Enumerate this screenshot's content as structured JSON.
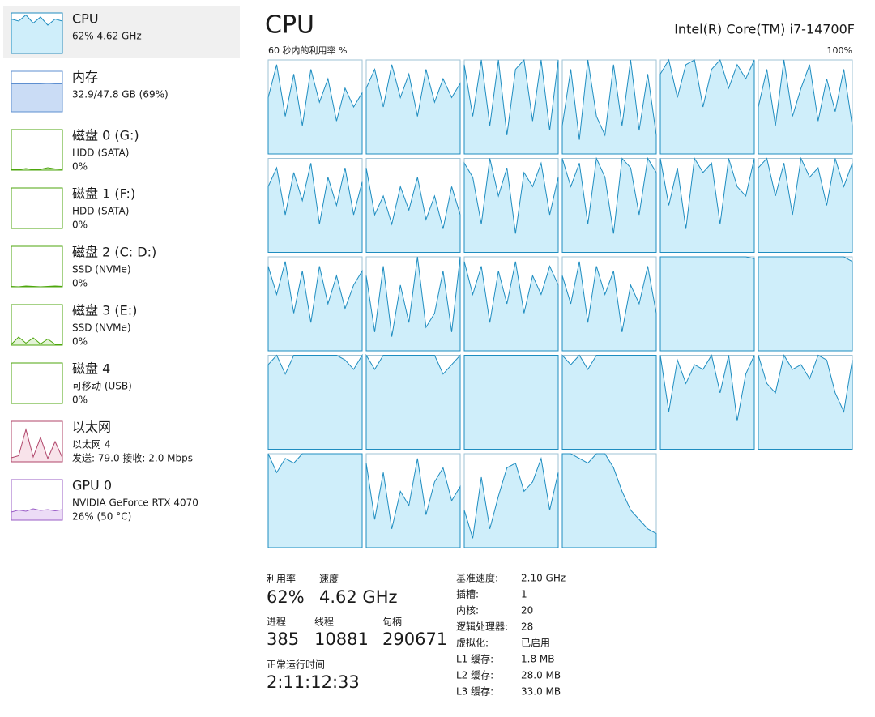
{
  "sidebar": [
    {
      "name": "CPU",
      "lines": [
        "62% 4.62 GHz"
      ],
      "graph": [
        85,
        80,
        95,
        75,
        90,
        70,
        85,
        80
      ]
    },
    {
      "name": "内存",
      "lines": [
        "32.9/47.8 GB (69%)"
      ],
      "graph": [
        69,
        69,
        69,
        69,
        69,
        70,
        69,
        69
      ]
    },
    {
      "name": "磁盘 0 (G:)",
      "lines": [
        "HDD (SATA)",
        "0%"
      ],
      "graph": [
        2,
        1,
        4,
        1,
        2,
        6,
        3,
        2
      ]
    },
    {
      "name": "磁盘 1 (F:)",
      "lines": [
        "HDD (SATA)",
        "0%"
      ],
      "graph": [
        0,
        0,
        0,
        0,
        0,
        0,
        0,
        0
      ]
    },
    {
      "name": "磁盘 2 (C: D:)",
      "lines": [
        "SSD (NVMe)",
        "0%"
      ],
      "graph": [
        1,
        0,
        2,
        1,
        0,
        1,
        2,
        1
      ]
    },
    {
      "name": "磁盘 3 (E:)",
      "lines": [
        "SSD (NVMe)",
        "0%"
      ],
      "graph": [
        2,
        20,
        5,
        18,
        3,
        15,
        2,
        1
      ]
    },
    {
      "name": "磁盘 4",
      "lines": [
        "可移动 (USB)",
        "0%"
      ],
      "graph": [
        0,
        0,
        0,
        0,
        0,
        0,
        0,
        0
      ]
    },
    {
      "name": "以太网",
      "lines": [
        "以太网 4",
        "发送: 79.0 接收: 2.0 Mbps"
      ],
      "graph": [
        10,
        15,
        80,
        12,
        60,
        8,
        50,
        10
      ]
    },
    {
      "name": "GPU 0",
      "lines": [
        "NVIDIA GeForce RTX 4070",
        "26% (50 °C)"
      ],
      "graph": [
        20,
        25,
        22,
        28,
        24,
        26,
        23,
        26
      ]
    }
  ],
  "header": {
    "title": "CPU",
    "model": "Intel(R) Core(TM) i7-14700F",
    "graph_label": "60 秒内的利用率 %",
    "graph_max": "100%"
  },
  "core_ylim": [
    0,
    100
  ],
  "cores": [
    [
      60,
      95,
      40,
      85,
      30,
      90,
      55,
      80,
      35,
      70,
      50,
      65
    ],
    [
      70,
      90,
      50,
      95,
      60,
      85,
      40,
      90,
      55,
      80,
      60,
      75
    ],
    [
      95,
      40,
      100,
      30,
      100,
      20,
      90,
      100,
      35,
      100,
      25,
      100
    ],
    [
      30,
      90,
      15,
      100,
      40,
      20,
      95,
      30,
      100,
      25,
      85,
      20
    ],
    [
      85,
      100,
      60,
      95,
      100,
      50,
      90,
      100,
      70,
      95,
      80,
      100
    ],
    [
      50,
      90,
      30,
      100,
      40,
      70,
      95,
      35,
      80,
      45,
      90,
      30
    ],
    [
      70,
      90,
      40,
      85,
      55,
      95,
      30,
      80,
      50,
      90,
      40,
      75
    ],
    [
      90,
      40,
      60,
      30,
      70,
      45,
      80,
      35,
      60,
      25,
      70,
      40
    ],
    [
      95,
      80,
      30,
      100,
      60,
      90,
      20,
      85,
      70,
      95,
      40,
      80
    ],
    [
      100,
      70,
      95,
      30,
      100,
      80,
      20,
      100,
      90,
      40,
      100,
      85
    ],
    [
      100,
      50,
      90,
      25,
      100,
      85,
      95,
      30,
      100,
      70,
      60,
      100
    ],
    [
      90,
      100,
      60,
      95,
      40,
      100,
      80,
      90,
      50,
      100,
      70,
      95
    ],
    [
      90,
      60,
      95,
      40,
      85,
      30,
      90,
      50,
      80,
      45,
      70,
      85
    ],
    [
      80,
      20,
      90,
      15,
      70,
      30,
      100,
      25,
      40,
      85,
      20,
      100
    ],
    [
      95,
      60,
      90,
      30,
      85,
      50,
      95,
      40,
      80,
      60,
      90,
      70
    ],
    [
      80,
      50,
      95,
      30,
      90,
      60,
      85,
      20,
      70,
      50,
      90,
      40
    ],
    [
      100,
      100,
      100,
      100,
      100,
      100,
      100,
      100,
      100,
      100,
      100,
      98
    ],
    [
      100,
      100,
      100,
      100,
      100,
      100,
      100,
      100,
      100,
      100,
      100,
      95
    ],
    [
      90,
      100,
      80,
      100,
      100,
      100,
      100,
      100,
      100,
      95,
      85,
      100
    ],
    [
      100,
      85,
      100,
      100,
      100,
      100,
      100,
      100,
      100,
      80,
      90,
      100
    ],
    [
      100,
      100,
      100,
      100,
      100,
      100,
      100,
      100,
      100,
      100,
      100,
      100
    ],
    [
      100,
      90,
      100,
      85,
      100,
      100,
      100,
      100,
      100,
      100,
      100,
      100
    ],
    [
      100,
      40,
      95,
      70,
      90,
      85,
      100,
      60,
      100,
      30,
      80,
      100
    ],
    [
      100,
      70,
      60,
      100,
      85,
      90,
      75,
      100,
      95,
      60,
      40,
      95
    ],
    [
      100,
      80,
      95,
      90,
      100,
      100,
      100,
      100,
      100,
      100,
      100,
      100
    ],
    [
      90,
      30,
      80,
      20,
      60,
      45,
      95,
      35,
      70,
      85,
      50,
      65
    ],
    [
      40,
      10,
      75,
      20,
      55,
      85,
      90,
      60,
      70,
      95,
      40,
      80
    ],
    [
      100,
      100,
      95,
      90,
      100,
      100,
      85,
      60,
      40,
      30,
      20,
      15
    ]
  ],
  "stats": [
    {
      "label": "利用率",
      "value": "62%"
    },
    {
      "label": "速度",
      "value": "4.62 GHz"
    },
    {
      "label": "进程",
      "value": "385"
    },
    {
      "label": "线程",
      "value": "10881"
    },
    {
      "label": "句柄",
      "value": "290671"
    },
    {
      "label": "正常运行时间",
      "value": "2:11:12:33"
    }
  ],
  "specs": [
    {
      "label": "基准速度:",
      "value": "2.10 GHz"
    },
    {
      "label": "插槽:",
      "value": "1"
    },
    {
      "label": "内核:",
      "value": "20"
    },
    {
      "label": "逻辑处理器:",
      "value": "28"
    },
    {
      "label": "虚拟化:",
      "value": "已启用"
    },
    {
      "label": "L1 缓存:",
      "value": "1.8 MB"
    },
    {
      "label": "L2 缓存:",
      "value": "28.0 MB"
    },
    {
      "label": "L3 缓存:",
      "value": "33.0 MB"
    }
  ]
}
